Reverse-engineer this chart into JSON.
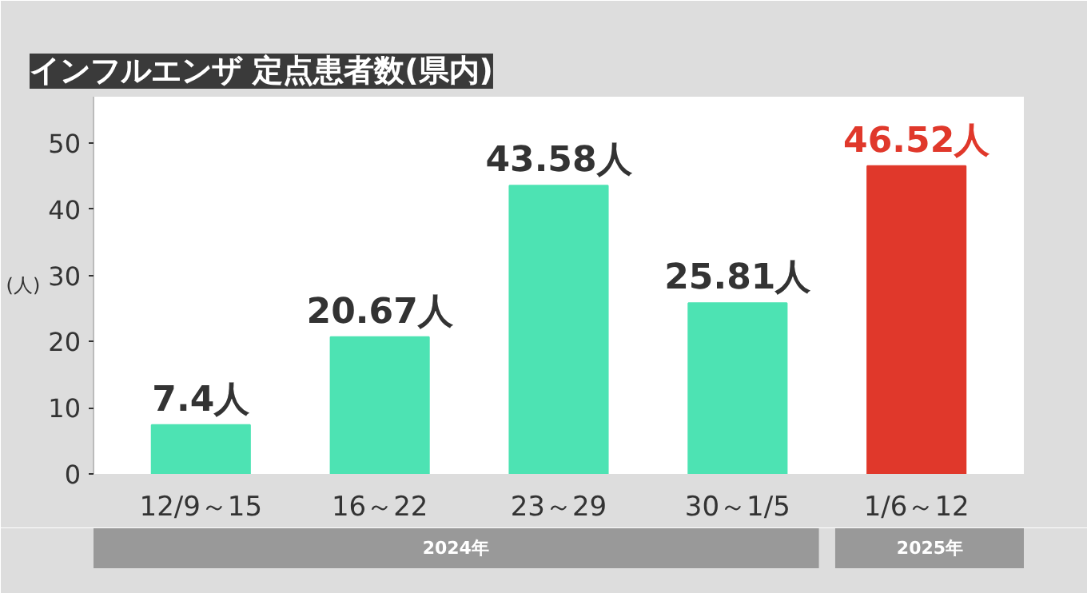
{
  "chart_data": {
    "type": "bar",
    "title": "インフルエンザ 定点患者数(県内)",
    "ylabel": "(人)",
    "categories": [
      "12/9～15",
      "16～22",
      "23～29",
      "30～1/5",
      "1/6～12"
    ],
    "values": [
      7.4,
      20.67,
      43.58,
      25.81,
      46.52
    ],
    "colors": [
      "#4de3b3",
      "#4de3b3",
      "#4de3b3",
      "#4de3b3",
      "#e0382b"
    ],
    "value_labels": [
      "7.4人",
      "20.67人",
      "43.58人",
      "25.81人",
      "46.52人"
    ],
    "ylim": [
      0,
      57
    ],
    "yticks": [
      0,
      10,
      20,
      30,
      40,
      50
    ],
    "annotations": [
      "2024年",
      "2025年"
    ],
    "grid": false
  }
}
